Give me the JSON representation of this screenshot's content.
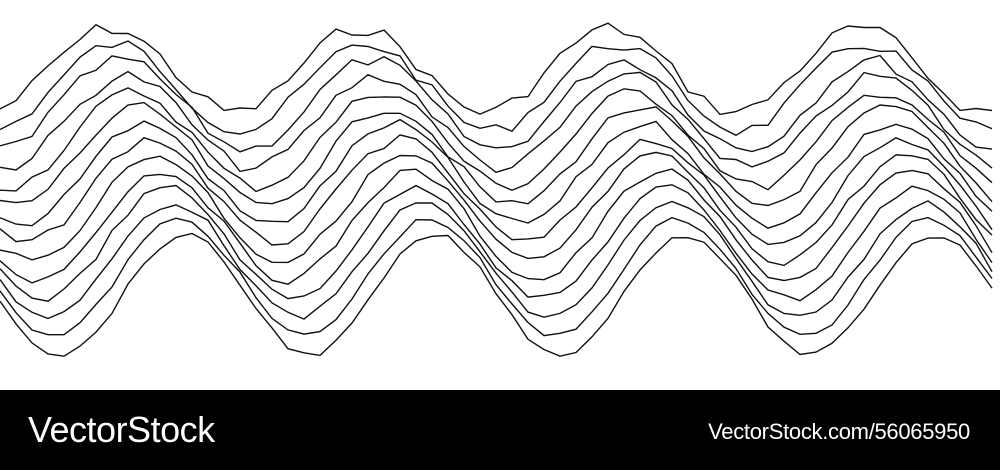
{
  "watermark": {
    "brand": "VectorStock",
    "id_text": "VectorStock.com/56065950"
  },
  "artwork": {
    "description_icon": "stacked-wave-lines-icon",
    "line_count": 14,
    "stroke_color": "#111111",
    "background_color": "#ffffff"
  },
  "colors": {
    "footer_bg": "#000000",
    "footer_text": "#ffffff"
  }
}
